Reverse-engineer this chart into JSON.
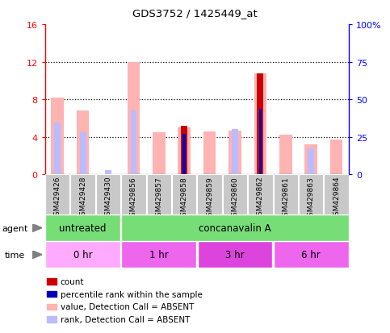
{
  "title": "GDS3752 / 1425449_at",
  "samples": [
    "GSM429426",
    "GSM429428",
    "GSM429430",
    "GSM429856",
    "GSM429857",
    "GSM429858",
    "GSM429859",
    "GSM429860",
    "GSM429862",
    "GSM429861",
    "GSM429863",
    "GSM429864"
  ],
  "value_absent": [
    8.2,
    6.8,
    0.0,
    12.0,
    4.5,
    5.0,
    4.6,
    4.7,
    10.8,
    4.2,
    3.2,
    3.7
  ],
  "rank_absent": [
    5.5,
    4.5,
    0.5,
    6.8,
    0.0,
    0.0,
    0.0,
    4.8,
    7.0,
    0.0,
    2.8,
    0.0
  ],
  "count": [
    0.0,
    0.0,
    0.0,
    0.0,
    0.0,
    5.2,
    0.0,
    0.0,
    10.8,
    0.0,
    0.0,
    0.0
  ],
  "percentile": [
    0.0,
    0.0,
    0.0,
    0.0,
    0.0,
    4.3,
    0.0,
    0.0,
    7.0,
    0.0,
    0.0,
    0.0
  ],
  "ylim_left": [
    0,
    16
  ],
  "ylim_right": [
    0,
    100
  ],
  "yticks_left": [
    0,
    4,
    8,
    12,
    16
  ],
  "yticks_right": [
    0,
    25,
    50,
    75,
    100
  ],
  "ytick_labels_right": [
    "0",
    "25",
    "50",
    "75",
    "100%"
  ],
  "color_value_absent": "#FFB3B3",
  "color_rank_absent": "#BBBBFF",
  "color_count": "#CC0000",
  "color_percentile": "#0000BB",
  "agent_groups": [
    {
      "label": "untreated",
      "start": 0,
      "end": 3,
      "color": "#77DD77"
    },
    {
      "label": "concanavalin A",
      "start": 3,
      "end": 12,
      "color": "#77DD77"
    }
  ],
  "time_groups": [
    {
      "label": "0 hr",
      "start": 0,
      "end": 3,
      "color": "#FFAAFF"
    },
    {
      "label": "1 hr",
      "start": 3,
      "end": 6,
      "color": "#EE66EE"
    },
    {
      "label": "3 hr",
      "start": 6,
      "end": 9,
      "color": "#DD44DD"
    },
    {
      "label": "6 hr",
      "start": 9,
      "end": 12,
      "color": "#EE66EE"
    }
  ],
  "legend_items": [
    {
      "label": "count",
      "color": "#CC0000"
    },
    {
      "label": "percentile rank within the sample",
      "color": "#0000BB"
    },
    {
      "label": "value, Detection Call = ABSENT",
      "color": "#FFB3B3"
    },
    {
      "label": "rank, Detection Call = ABSENT",
      "color": "#BBBBFF"
    }
  ],
  "sample_box_color": "#C8C8C8",
  "grid_lines": [
    4,
    8,
    12
  ],
  "plot_bg": "#FFFFFF"
}
